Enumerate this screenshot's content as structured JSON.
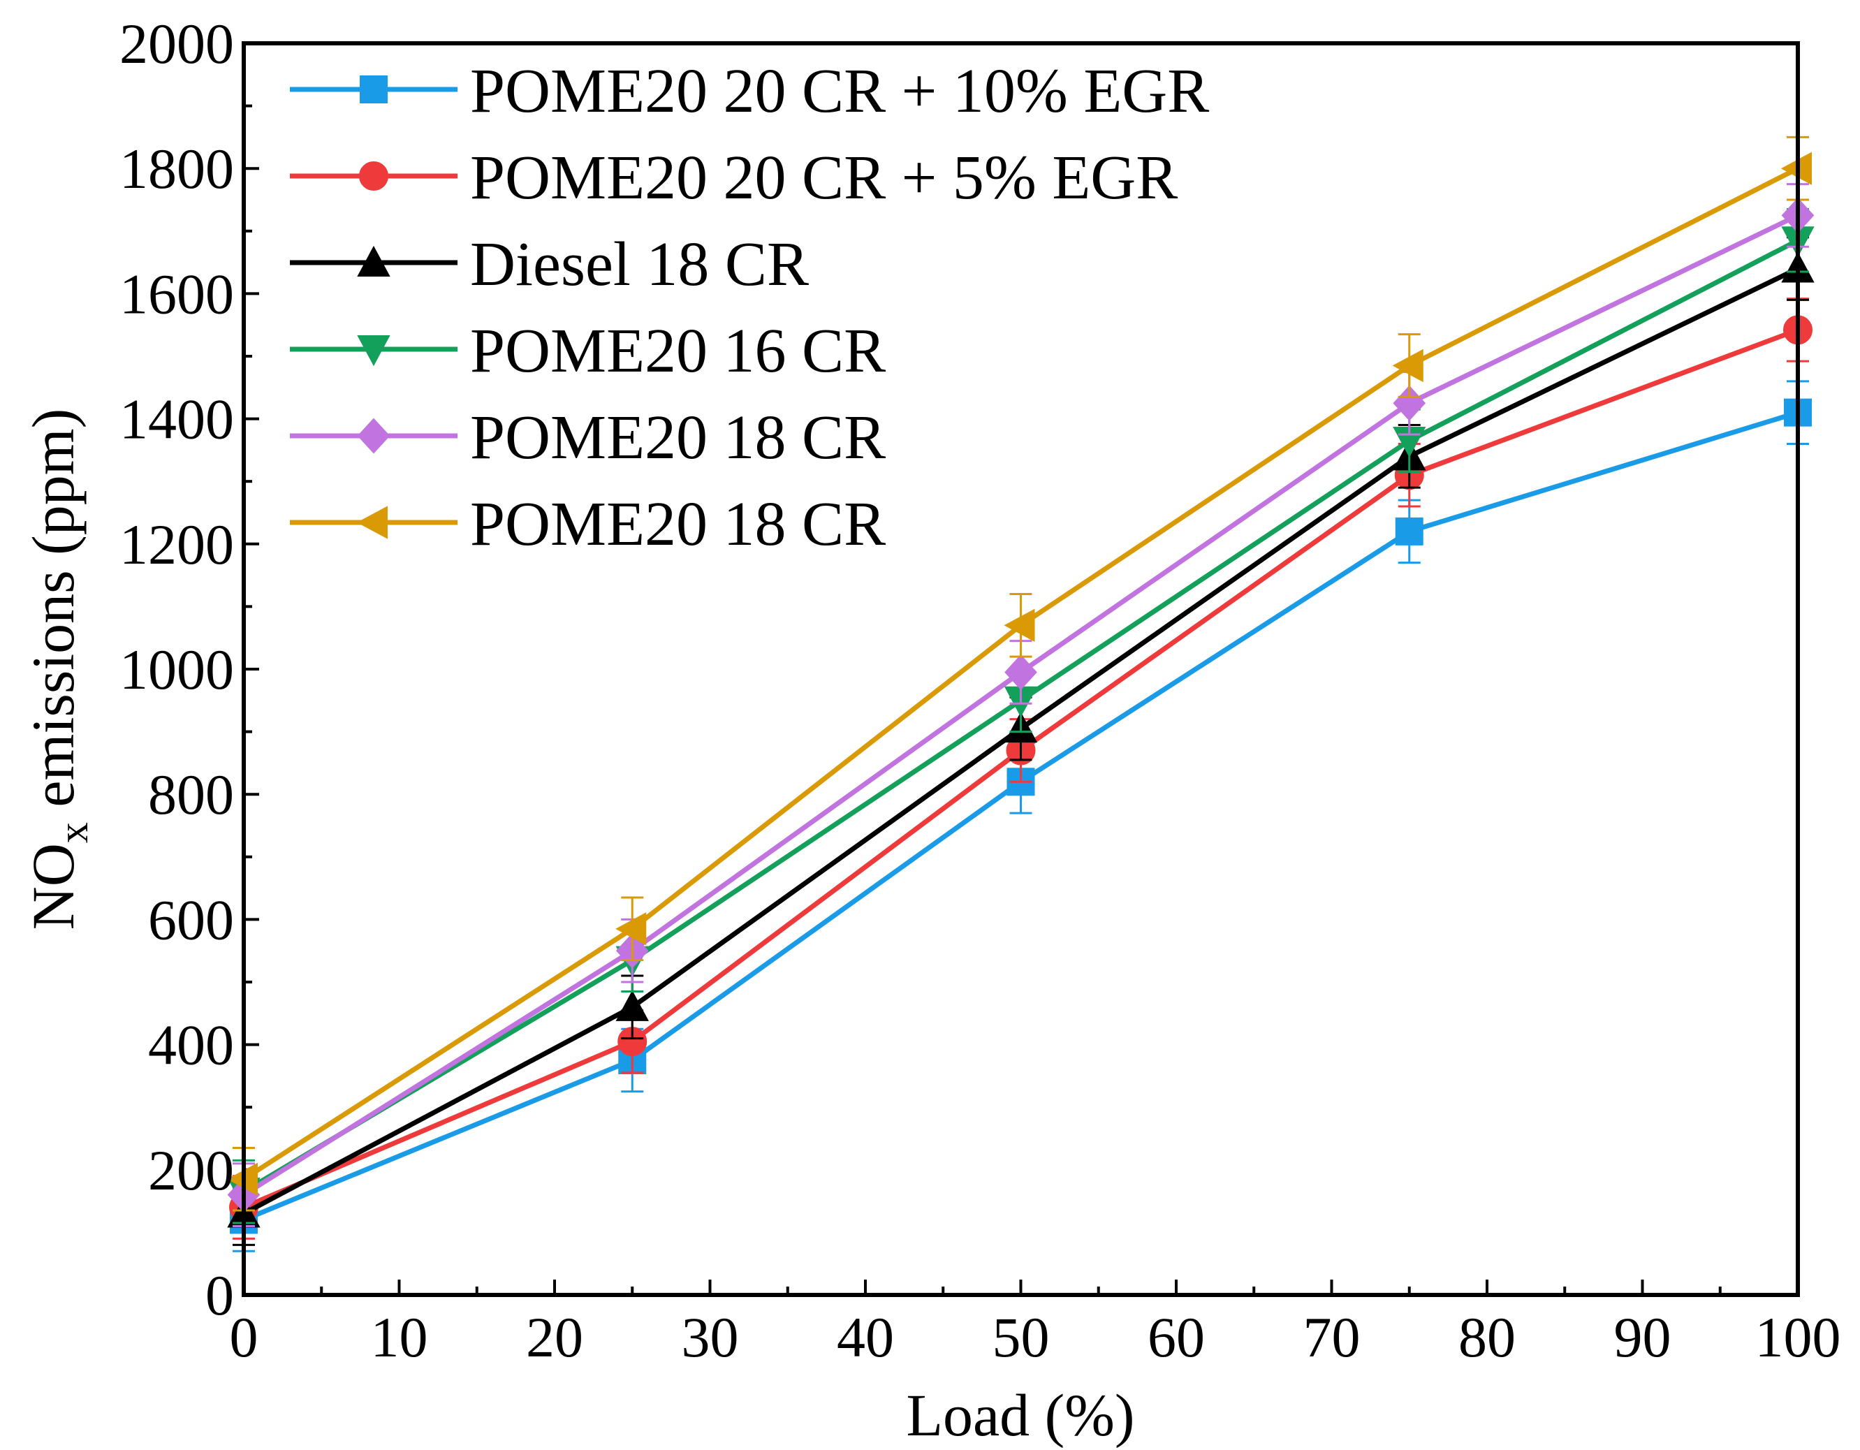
{
  "chart_data": {
    "type": "line",
    "title": "",
    "xlabel": "Load (%)",
    "ylabel": {
      "prefix": "NO",
      "subscript": "x",
      "suffix": " emissions (ppm)"
    },
    "xlim": [
      0,
      100
    ],
    "ylim": [
      0,
      2000
    ],
    "xticks": [
      0,
      10,
      20,
      30,
      40,
      50,
      60,
      70,
      80,
      90,
      100
    ],
    "yticks": [
      0,
      200,
      400,
      600,
      800,
      1000,
      1200,
      1400,
      1600,
      1800,
      2000
    ],
    "grid": false,
    "legend_position": "top-left",
    "x": [
      0,
      25,
      50,
      75,
      100
    ],
    "series": [
      {
        "name": "POME20 20 CR + 10% EGR",
        "color": "#1a9be8",
        "marker": "square",
        "values": [
          120,
          375,
          820,
          1220,
          1410
        ],
        "error": [
          50,
          50,
          50,
          50,
          50
        ]
      },
      {
        "name": "POME20 20 CR + 5% EGR",
        "color": "#ee3a3a",
        "marker": "circle",
        "values": [
          140,
          405,
          870,
          1310,
          1542
        ],
        "error": [
          50,
          50,
          50,
          50,
          50
        ]
      },
      {
        "name": "Diesel 18 CR",
        "color": "#000000",
        "marker": "triangle-up",
        "values": [
          130,
          460,
          905,
          1340,
          1640
        ],
        "error": [
          50,
          50,
          50,
          50,
          50
        ]
      },
      {
        "name": "POME20 16 CR",
        "color": "#12a05a",
        "marker": "triangle-down",
        "values": [
          165,
          535,
          950,
          1365,
          1685
        ],
        "error": [
          50,
          50,
          50,
          50,
          50
        ]
      },
      {
        "name": "POME20 18 CR",
        "color": "#c173e0",
        "marker": "diamond",
        "values": [
          160,
          550,
          995,
          1425,
          1725
        ],
        "error": [
          50,
          50,
          50,
          50,
          50
        ]
      },
      {
        "name": "POME20 18 CR",
        "color": "#d99a06",
        "marker": "triangle-left",
        "values": [
          185,
          585,
          1070,
          1485,
          1800
        ],
        "error": [
          50,
          50,
          50,
          50,
          50
        ]
      }
    ]
  }
}
